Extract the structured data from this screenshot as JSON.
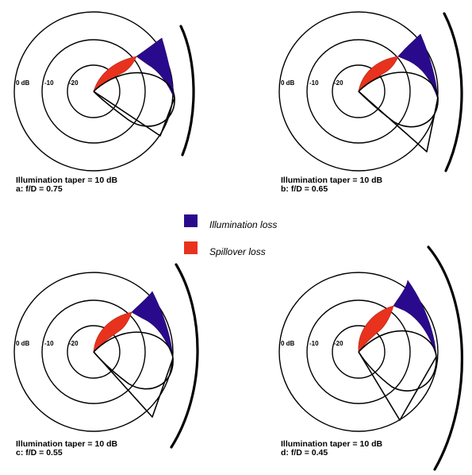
{
  "colors": {
    "illumination_loss": "#2a0a8c",
    "spillover_loss": "#e8321e"
  },
  "ring_labels": [
    "0 dB",
    "-10",
    "-20"
  ],
  "legend": [
    {
      "label": "Illumination loss",
      "color": "#2a0a8c"
    },
    {
      "label": "Spillover loss",
      "color": "#e8321e"
    }
  ],
  "panels": [
    {
      "id": "a",
      "caption_line1": "Illumination taper = 10 dB",
      "caption_line2": "a: f/D = 0.75",
      "f_over_d": 0.75,
      "taper_db": 10
    },
    {
      "id": "b",
      "caption_line1": "Illumination taper = 10 dB",
      "caption_line2": "b: f/D = 0.65",
      "f_over_d": 0.65,
      "taper_db": 10
    },
    {
      "id": "c",
      "caption_line1": "Illumination taper = 10 dB",
      "caption_line2": "c: f/D = 0.55",
      "f_over_d": 0.55,
      "taper_db": 10
    },
    {
      "id": "d",
      "caption_line1": "Illumination taper = 10 dB",
      "caption_line2": "d: f/D = 0.45",
      "f_over_d": 0.45,
      "taper_db": 10
    }
  ]
}
